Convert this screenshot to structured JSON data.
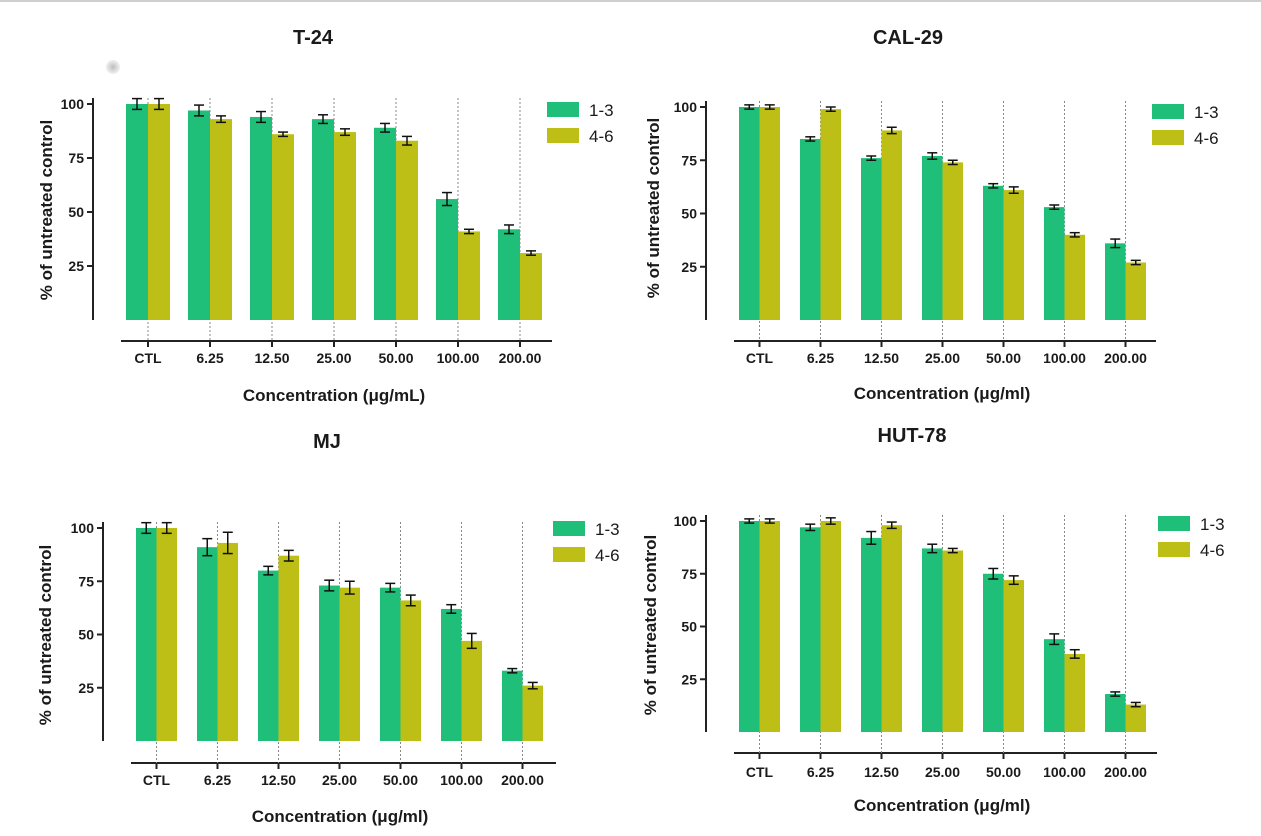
{
  "chart_data": [
    {
      "type": "bar",
      "title": "T-24",
      "xlabel": "Concentration (μg/mL)",
      "ylabel": "% of untreated control",
      "ylim": [
        0,
        100
      ],
      "yticks": [
        25,
        50,
        75,
        100
      ],
      "categories": [
        "CTL",
        "6.25",
        "12.50",
        "25.00",
        "50.00",
        "100.00",
        "200.00"
      ],
      "legend_position": "top-right",
      "series": [
        {
          "name": "1-3",
          "color": "#1fbf7a",
          "values": [
            100,
            97,
            94,
            93,
            89,
            56,
            42
          ],
          "errors": [
            2.5,
            2.5,
            2.5,
            2,
            2,
            3,
            2
          ]
        },
        {
          "name": "4-6",
          "color": "#bdbf17",
          "values": [
            100,
            93,
            86,
            87,
            83,
            41,
            31
          ],
          "errors": [
            2.5,
            1.5,
            1,
            1.5,
            2,
            1,
            1
          ]
        }
      ]
    },
    {
      "type": "bar",
      "title": "CAL-29",
      "xlabel": "Concentration (μg/ml)",
      "ylabel": "% of untreated control",
      "ylim": [
        0,
        100
      ],
      "yticks": [
        25,
        50,
        75,
        100
      ],
      "categories": [
        "CTL",
        "6.25",
        "12.50",
        "25.00",
        "50.00",
        "100.00",
        "200.00"
      ],
      "legend_position": "top-right",
      "series": [
        {
          "name": "1-3",
          "color": "#1fbf7a",
          "values": [
            100,
            85,
            76,
            77,
            63,
            53,
            36
          ],
          "errors": [
            1,
            1,
            1,
            1.5,
            1,
            1,
            2
          ]
        },
        {
          "name": "4-6",
          "color": "#bdbf17",
          "values": [
            100,
            99,
            89,
            74,
            61,
            40,
            27
          ],
          "errors": [
            1,
            1,
            1.5,
            1,
            1.5,
            1,
            1
          ]
        }
      ]
    },
    {
      "type": "bar",
      "title": "MJ",
      "xlabel": "Concentration (μg/ml)",
      "ylabel": "% of untreated control",
      "ylim": [
        0,
        100
      ],
      "yticks": [
        25,
        50,
        75,
        100
      ],
      "categories": [
        "CTL",
        "6.25",
        "12.50",
        "25.00",
        "50.00",
        "100.00",
        "200.00"
      ],
      "legend_position": "top-right",
      "series": [
        {
          "name": "1-3",
          "color": "#1fbf7a",
          "values": [
            100,
            91,
            80,
            73,
            72,
            62,
            33
          ],
          "errors": [
            2.5,
            4,
            2,
            2.5,
            2,
            2,
            1
          ]
        },
        {
          "name": "4-6",
          "color": "#bdbf17",
          "values": [
            100,
            93,
            87,
            72,
            66,
            47,
            26
          ],
          "errors": [
            2.5,
            5,
            2.5,
            3,
            2.5,
            3.5,
            1.5
          ]
        }
      ]
    },
    {
      "type": "bar",
      "title": "HUT-78",
      "xlabel": "Concentration (μg/ml)",
      "ylabel": "% of untreated control",
      "ylim": [
        0,
        100
      ],
      "yticks": [
        25,
        50,
        75,
        100
      ],
      "categories": [
        "CTL",
        "6.25",
        "12.50",
        "25.00",
        "50.00",
        "100.00",
        "200.00"
      ],
      "legend_position": "top-right",
      "series": [
        {
          "name": "1-3",
          "color": "#1fbf7a",
          "values": [
            100,
            97,
            92,
            87,
            75,
            44,
            18
          ],
          "errors": [
            1,
            1.5,
            3,
            2,
            2.5,
            2.5,
            1
          ]
        },
        {
          "name": "4-6",
          "color": "#bdbf17",
          "values": [
            100,
            100,
            98,
            86,
            72,
            37,
            13
          ],
          "errors": [
            1,
            1.5,
            1.5,
            1,
            2,
            2,
            1
          ]
        }
      ]
    }
  ]
}
